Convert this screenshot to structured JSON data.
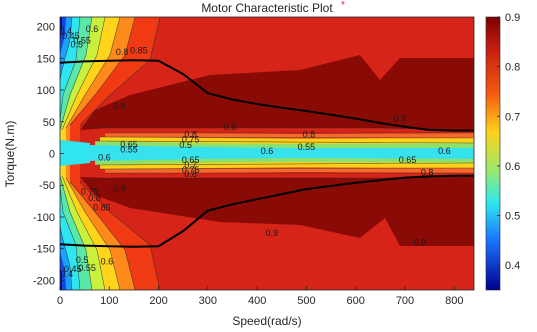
{
  "chart_data": {
    "type": "heatmap",
    "title": "Motor Characteristic Plot",
    "title_marker": "*",
    "title_marker_color": "#e8202a",
    "xlabel": "Speed(rad/s)",
    "ylabel": "Torque(N.m)",
    "xlim": [
      0,
      840
    ],
    "ylim": [
      -215,
      215
    ],
    "x_ticks": [
      "0",
      "100",
      "200",
      "300",
      "400",
      "500",
      "600",
      "700",
      "800"
    ],
    "y_ticks": [
      "200",
      "150",
      "100",
      "50",
      "0",
      "-50",
      "-100",
      "-150",
      "-200"
    ],
    "colorbar": {
      "range": [
        0.35,
        0.9
      ],
      "ticks": [
        "0.9",
        "0.8",
        "0.7",
        "0.6",
        "0.5",
        "0.4"
      ]
    },
    "efficiency_levels": [
      0.35,
      0.4,
      0.45,
      0.5,
      0.55,
      0.6,
      0.65,
      0.7,
      0.75,
      0.8,
      0.85,
      0.9
    ],
    "contour_labels": [
      {
        "text": "0.4",
        "x": 12,
        "y": 193
      },
      {
        "text": "0.45",
        "x": 22,
        "y": 185
      },
      {
        "text": "0.5",
        "x": 34,
        "y": 172
      },
      {
        "text": "0.55",
        "x": 45,
        "y": 178
      },
      {
        "text": "0.6",
        "x": 65,
        "y": 196
      },
      {
        "text": "0.8",
        "x": 126,
        "y": 160
      },
      {
        "text": "0.85",
        "x": 160,
        "y": 162
      },
      {
        "text": "0.9",
        "x": 120,
        "y": 75
      },
      {
        "text": "0.9",
        "x": 345,
        "y": 42
      },
      {
        "text": "0.9",
        "x": 690,
        "y": 55
      },
      {
        "text": "0.8",
        "x": 265,
        "y": 30
      },
      {
        "text": "0.8",
        "x": 505,
        "y": 30
      },
      {
        "text": "0.75",
        "x": 265,
        "y": 22
      },
      {
        "text": "0.65",
        "x": 140,
        "y": 14
      },
      {
        "text": "0.55",
        "x": 140,
        "y": 6
      },
      {
        "text": "0.5",
        "x": 255,
        "y": 13
      },
      {
        "text": "0.6",
        "x": 90,
        "y": -6
      },
      {
        "text": "0.6",
        "x": 420,
        "y": 4
      },
      {
        "text": "0.6",
        "x": 780,
        "y": 4
      },
      {
        "text": "0.55",
        "x": 500,
        "y": 10
      },
      {
        "text": "0.65",
        "x": 265,
        "y": -10
      },
      {
        "text": "0.65",
        "x": 705,
        "y": -10
      },
      {
        "text": "0.7",
        "x": 265,
        "y": -18
      },
      {
        "text": "0.75",
        "x": 265,
        "y": -26
      },
      {
        "text": "0.8",
        "x": 265,
        "y": -32
      },
      {
        "text": "0.8",
        "x": 745,
        "y": -30
      },
      {
        "text": "0.9",
        "x": 120,
        "y": -55
      },
      {
        "text": "0.9",
        "x": 430,
        "y": -125
      },
      {
        "text": "0.9",
        "x": 730,
        "y": -140
      },
      {
        "text": "0.6",
        "x": 95,
        "y": -170
      },
      {
        "text": "0.55",
        "x": 55,
        "y": -180
      },
      {
        "text": "0.5",
        "x": 45,
        "y": -168
      },
      {
        "text": "0.45",
        "x": 26,
        "y": -182
      },
      {
        "text": "0.4",
        "x": 14,
        "y": -190
      },
      {
        "text": "0.85",
        "x": 85,
        "y": -85
      },
      {
        "text": "0.8",
        "x": 70,
        "y": -70
      },
      {
        "text": "0.75",
        "x": 60,
        "y": -60
      }
    ],
    "max_torque_curve_upper": {
      "x": [
        0,
        50,
        100,
        150,
        200,
        250,
        300,
        350,
        400,
        450,
        500,
        550,
        600,
        650,
        700,
        750,
        800,
        840
      ],
      "y": [
        143,
        145,
        146,
        147,
        146,
        125,
        95,
        85,
        78,
        72,
        67,
        61,
        55,
        48,
        42,
        37,
        36,
        36
      ]
    },
    "max_torque_curve_lower": {
      "x": [
        0,
        50,
        100,
        150,
        200,
        250,
        300,
        350,
        400,
        450,
        500,
        550,
        600,
        650,
        700,
        750,
        800,
        840
      ],
      "y": [
        -143,
        -145,
        -146,
        -147,
        -146,
        -122,
        -90,
        -80,
        -72,
        -64,
        -56,
        -51,
        -46,
        -42,
        -38,
        -36,
        -35,
        -35
      ]
    }
  }
}
